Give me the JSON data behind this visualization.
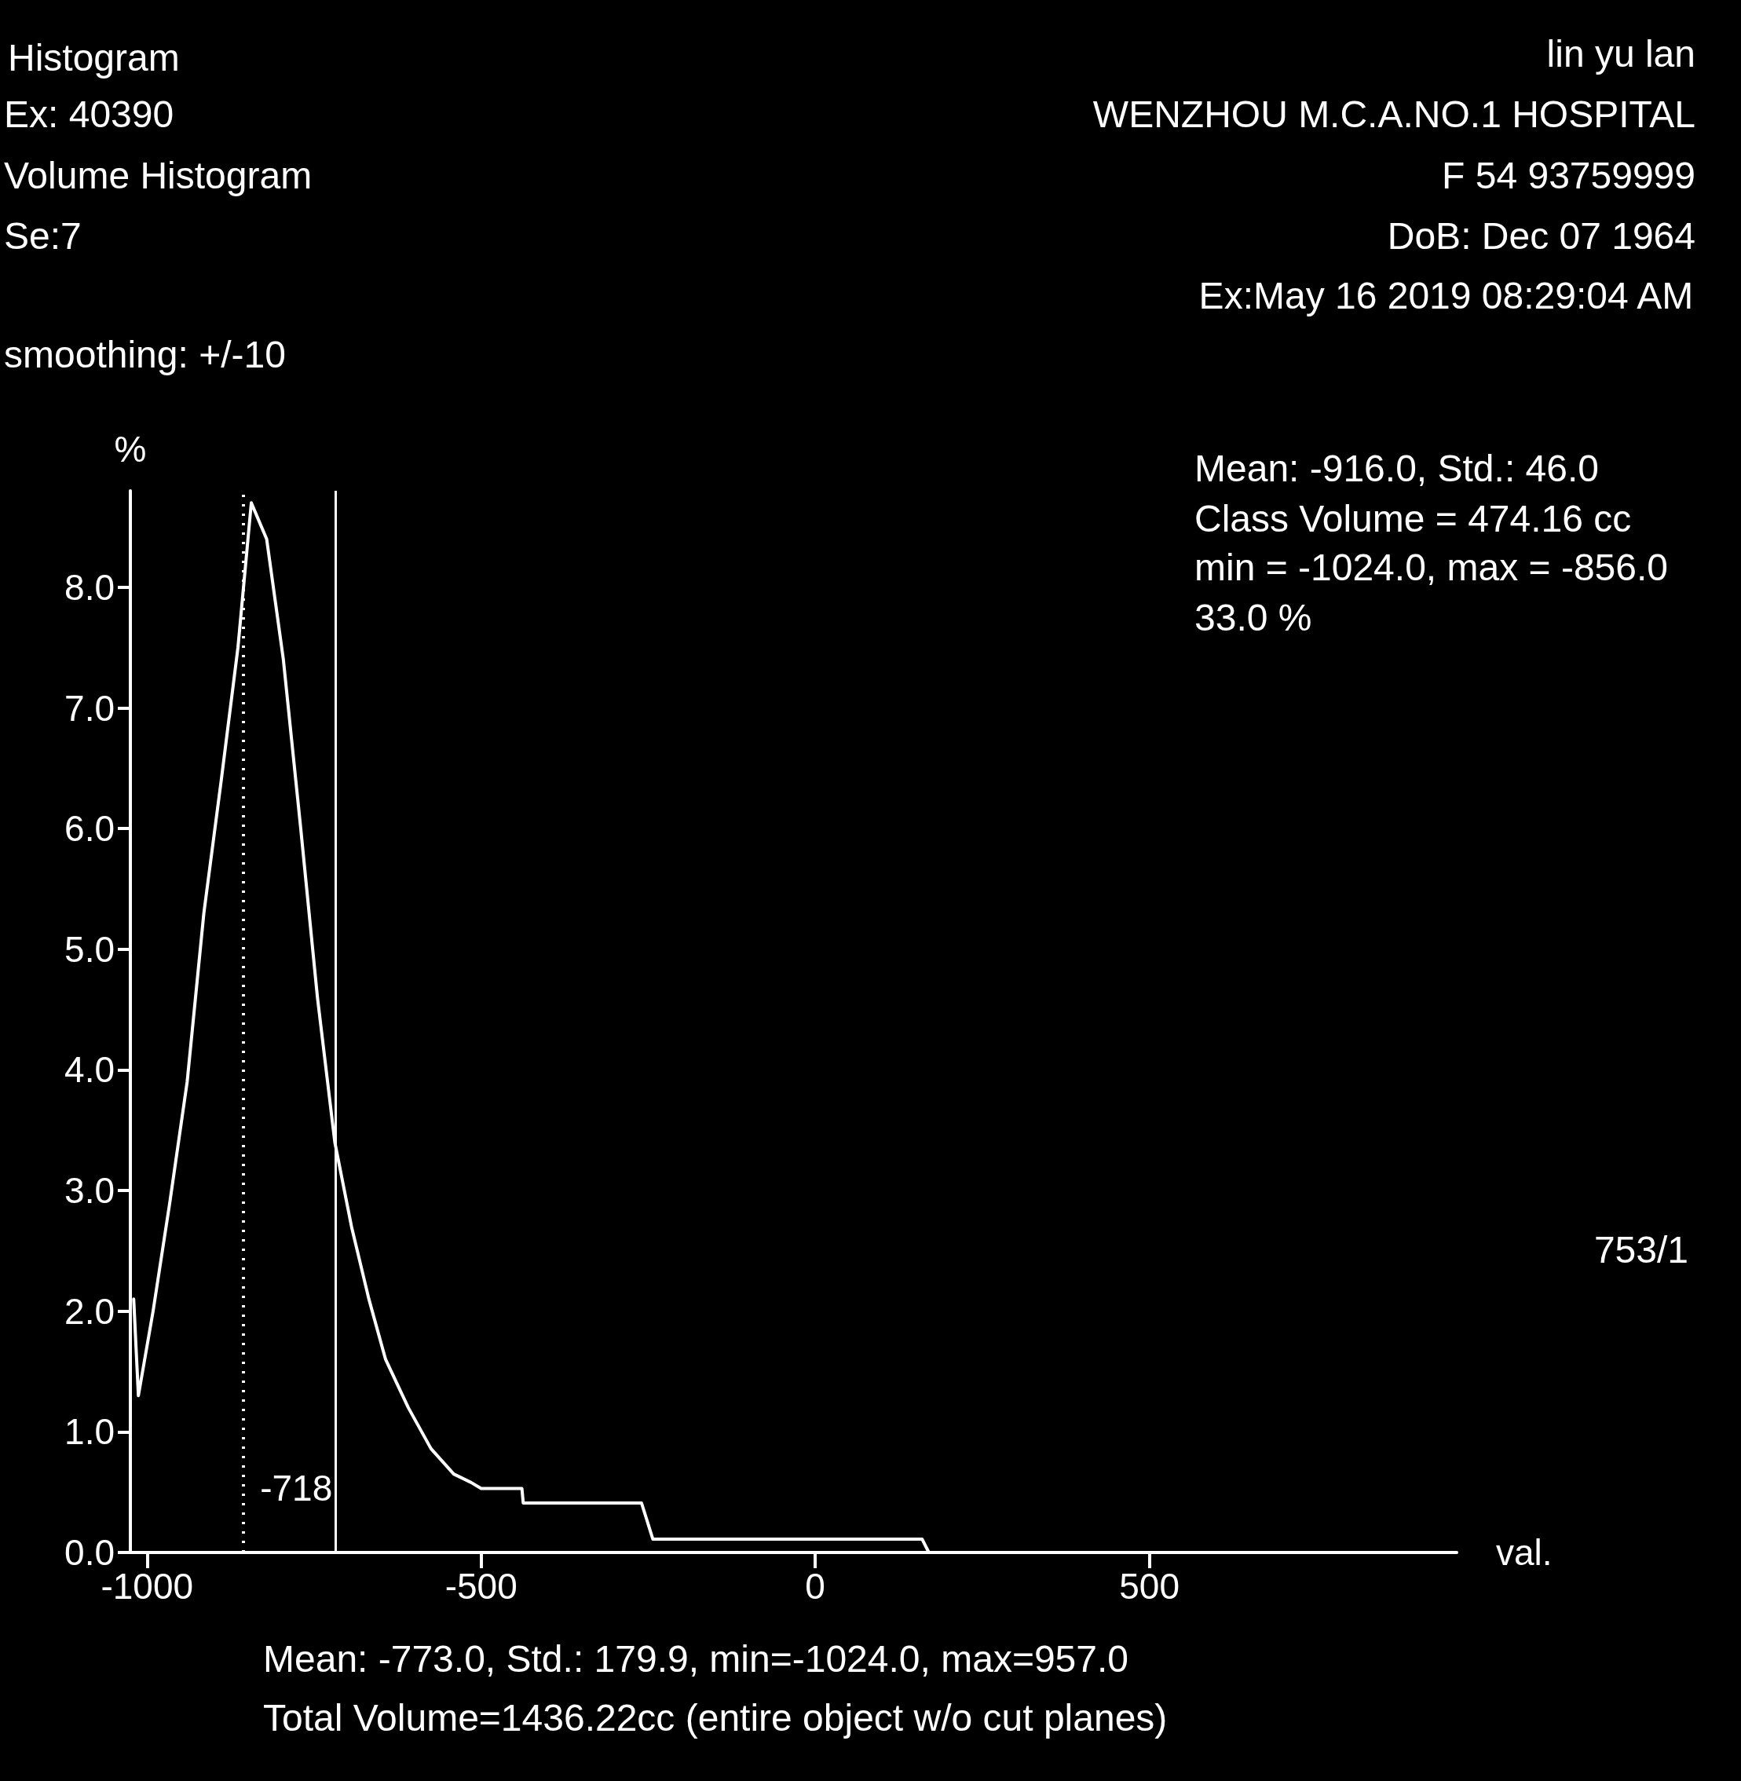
{
  "chart_data": {
    "type": "line",
    "title": "Histogram",
    "xlabel": "val.",
    "ylabel": "%",
    "annotations": [
      "Ex: 40390",
      "Volume Histogram",
      "Se:7",
      "smoothing: +/-10",
      "lin yu lan",
      "WENZHOU M.C.A.NO.1 HOSPITAL",
      "F 54 93759999",
      "DoB: Dec 07 1964",
      "Ex:May 16 2019 08:29:04 AM",
      "Mean: -916.0, Std.: 46.0",
      "Class Volume = 474.16 cc",
      "min = -1024.0, max = -856.0",
      "33.0 %",
      "753/1",
      "Mean: -773.0, Std.: 179.9, min=-1024.0, max=957.0",
      "Total Volume=1436.22cc (entire object w/o cut planes)"
    ],
    "series": [
      {
        "color": "#ffffff",
        "x": [
          -1020,
          -1013,
          -991,
          -966,
          -940,
          -915,
          -889,
          -864,
          -844,
          -821,
          -796,
          -770,
          -745,
          -719,
          -694,
          -668,
          -643,
          -609,
          -575,
          -541,
          -515,
          -500,
          -439,
          -437,
          -260,
          -243,
          160,
          170
        ],
        "values": [
          2.1,
          1.3,
          2.0,
          2.9,
          3.9,
          5.3,
          6.4,
          7.5,
          8.7,
          8.4,
          7.4,
          6.0,
          4.6,
          3.4,
          2.7,
          2.1,
          1.6,
          1.2,
          0.86,
          0.65,
          0.58,
          0.53,
          0.53,
          0.41,
          0.41,
          0.11,
          0.11,
          0
        ]
      }
    ],
    "xlim": [
      -1025,
      960
    ],
    "xticks": [
      -1000,
      -500,
      0,
      500
    ],
    "ylim": [
      0,
      8.8
    ],
    "yticks": [
      {
        "value": 0,
        "label": "0.0"
      },
      {
        "value": 1,
        "label": "1.0"
      },
      {
        "value": 2,
        "label": "2.0"
      },
      {
        "value": 3,
        "label": "3.0"
      },
      {
        "value": 4,
        "label": "4.0"
      },
      {
        "value": 5,
        "label": "5.0"
      },
      {
        "value": 6,
        "label": "6.0"
      },
      {
        "value": 7,
        "label": "7.0"
      },
      {
        "value": 8,
        "label": "8.0"
      }
    ],
    "ref_lines": [
      {
        "axis": "x",
        "value": -718,
        "label": "-718",
        "color": "#ffffff",
        "line_style": "solid"
      },
      {
        "axis": "x",
        "value": -856,
        "label": null,
        "color": "#ffffff",
        "line_style": "dotted"
      }
    ],
    "grid": false,
    "marker": "none",
    "line_style": "solid"
  }
}
